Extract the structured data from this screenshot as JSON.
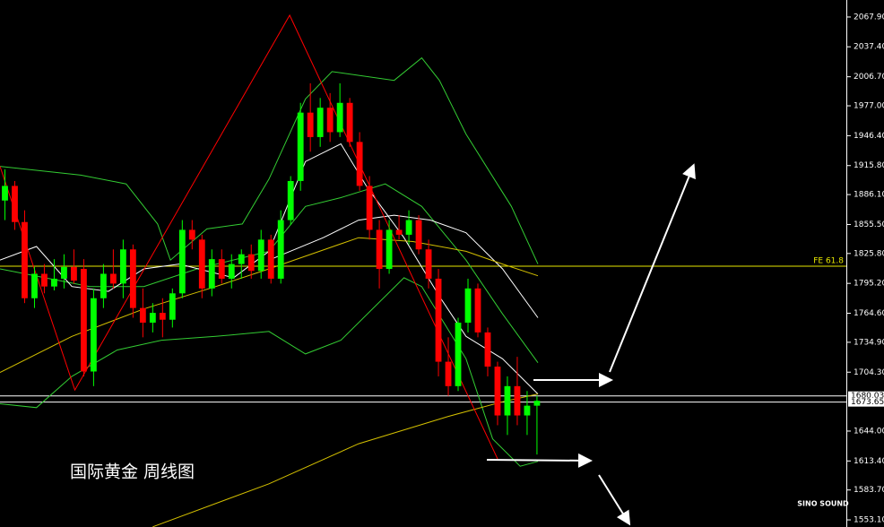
{
  "chart_data": {
    "type": "candlestick",
    "title": "国际黄金  周线图",
    "brand": "SINO SOUND",
    "up_color": "#00ff00",
    "down_color": "#ff0000",
    "xlim": [
      -0.5,
      85.4
    ],
    "ylim": [
      1545.8,
      2085.3
    ],
    "yticks": [
      {
        "value": 2067.9,
        "label": "2067.90"
      },
      {
        "value": 2037.4,
        "label": "2037.40"
      },
      {
        "value": 2006.7,
        "label": "2006.70"
      },
      {
        "value": 1977,
        "label": "1977.00"
      },
      {
        "value": 1946.4,
        "label": "1946.40"
      },
      {
        "value": 1915.8,
        "label": "1915.80"
      },
      {
        "value": 1886.1,
        "label": "1886.10"
      },
      {
        "value": 1855.5,
        "label": "1855.50"
      },
      {
        "value": 1825.8,
        "label": "1825.80"
      },
      {
        "value": 1795.2,
        "label": "1795.20"
      },
      {
        "value": 1764.6,
        "label": "1764.60"
      },
      {
        "value": 1734.9,
        "label": "1734.90"
      },
      {
        "value": 1704.3,
        "label": "1704.30"
      },
      {
        "value": 1644,
        "label": "1644.00"
      },
      {
        "value": 1613.4,
        "label": "1613.40"
      },
      {
        "value": 1583.7,
        "label": "1583.70"
      },
      {
        "value": 1553.1,
        "label": "1553.10"
      }
    ],
    "candles": {
      "open": [
        1880,
        1895,
        1858,
        1780,
        1805,
        1792,
        1800,
        1812,
        1810,
        1705,
        1780,
        1805,
        1795,
        1830,
        1770,
        1755,
        1765,
        1758,
        1785,
        1850,
        1840,
        1790,
        1820,
        1800,
        1815,
        1825,
        1808,
        1840,
        1800,
        1860,
        1900,
        1970,
        1945,
        1975,
        1950,
        1980,
        1940,
        1895,
        1850,
        1810,
        1850,
        1845,
        1860,
        1830,
        1800,
        1715,
        1690,
        1755,
        1790,
        1745,
        1710,
        1660,
        1690,
        1660,
        1670
      ],
      "high": [
        1912,
        1900,
        1870,
        1812,
        1815,
        1820,
        1825,
        1830,
        1820,
        1790,
        1815,
        1830,
        1840,
        1835,
        1790,
        1775,
        1780,
        1790,
        1860,
        1860,
        1845,
        1830,
        1830,
        1825,
        1830,
        1835,
        1850,
        1845,
        1870,
        1905,
        1980,
        2000,
        1985,
        1990,
        2000,
        1985,
        1950,
        1905,
        1860,
        1860,
        1865,
        1870,
        1865,
        1840,
        1810,
        1740,
        1760,
        1800,
        1795,
        1750,
        1715,
        1700,
        1720,
        1685,
        1680
      ],
      "low": [
        1860,
        1850,
        1775,
        1770,
        1785,
        1788,
        1790,
        1795,
        1700,
        1690,
        1770,
        1790,
        1780,
        1760,
        1740,
        1745,
        1740,
        1750,
        1780,
        1830,
        1780,
        1782,
        1795,
        1790,
        1800,
        1800,
        1800,
        1795,
        1795,
        1855,
        1890,
        1930,
        1935,
        1940,
        1945,
        1935,
        1890,
        1840,
        1790,
        1805,
        1840,
        1835,
        1825,
        1790,
        1700,
        1680,
        1685,
        1745,
        1740,
        1700,
        1650,
        1640,
        1650,
        1640,
        1620
      ],
      "close": [
        1895,
        1858,
        1780,
        1805,
        1792,
        1800,
        1812,
        1798,
        1705,
        1780,
        1805,
        1795,
        1830,
        1770,
        1755,
        1765,
        1758,
        1785,
        1850,
        1840,
        1790,
        1820,
        1800,
        1815,
        1825,
        1808,
        1840,
        1800,
        1860,
        1900,
        1970,
        1945,
        1975,
        1950,
        1980,
        1940,
        1895,
        1850,
        1810,
        1850,
        1845,
        1860,
        1830,
        1800,
        1715,
        1690,
        1755,
        1790,
        1745,
        1710,
        1660,
        1690,
        1660,
        1670,
        1675
      ]
    },
    "lines": [
      {
        "color": "#33cc33",
        "x": [
          -0.5,
          7.7,
          12.3,
          15.5,
          16.8,
          20.5,
          24.1,
          26.8,
          30.5,
          33.2,
          39.5,
          42.3,
          44.1,
          46.8,
          51.4,
          54.1
        ],
        "values": [
          1915,
          1906,
          1897,
          1856,
          1819,
          1851,
          1856,
          1902,
          1984,
          2012,
          2003,
          2026,
          2003,
          1948,
          1874,
          1815
        ]
      },
      {
        "color": "#33cc33",
        "x": [
          -0.5,
          8.6,
          14.1,
          19.5,
          26.8,
          30.5,
          34.1,
          38.6,
          42.3,
          46.8,
          50.5,
          54.1
        ],
        "values": [
          1810,
          1792,
          1792,
          1810,
          1828,
          1874,
          1883,
          1897,
          1874,
          1819,
          1764,
          1714
        ]
      },
      {
        "color": "#33cc33",
        "x": [
          -0.5,
          3.2,
          6.8,
          11.4,
          15.9,
          21.4,
          26.8,
          30.5,
          34.1,
          37.7,
          40.5,
          42.3,
          46.8,
          49.5,
          52.3,
          54.1
        ],
        "values": [
          1672,
          1668,
          1700,
          1727,
          1737,
          1741,
          1746,
          1723,
          1737,
          1773,
          1801,
          1792,
          1718,
          1636,
          1608,
          1613
        ]
      },
      {
        "color": "#ffffff",
        "x": [
          -0.5,
          3.2,
          6.8,
          10.5,
          14.1,
          17.7,
          23.2,
          26.8,
          30.5,
          34.1,
          36.8,
          40.5,
          44.1,
          46.8,
          50.5,
          54.1
        ],
        "values": [
          1819,
          1833,
          1792,
          1787,
          1810,
          1815,
          1801,
          1828,
          1920,
          1938,
          1893,
          1842,
          1782,
          1741,
          1718,
          1682
        ]
      },
      {
        "color": "#ffffff",
        "x": [
          26.8,
          32.3,
          35.9,
          39.5,
          43.2,
          46.8,
          50.5,
          54.1
        ],
        "values": [
          1819,
          1842,
          1860,
          1865,
          1860,
          1847,
          1810,
          1760
        ]
      },
      {
        "color": "#d4c000",
        "x": [
          -0.5,
          6.8,
          14.1,
          21.4,
          26.8,
          35.9,
          41.4,
          46.8,
          50.5,
          54.1
        ],
        "values": [
          1704,
          1741,
          1769,
          1792,
          1810,
          1842,
          1838,
          1828,
          1815,
          1803
        ]
      },
      {
        "color": "#d4c000",
        "x": [
          15,
          26.8,
          35.9,
          45,
          50.5,
          54.1
        ],
        "values": [
          1546,
          1590,
          1631,
          1659,
          1674,
          1682
        ]
      },
      {
        "color": "#ff0000",
        "x": [
          -0.5,
          7.1,
          28.9,
          50
        ],
        "values": [
          1915,
          1686,
          2069.7,
          1615.5
        ]
      }
    ],
    "hlines": [
      {
        "value": 1812.8,
        "label": "FE 61.8",
        "color": "#e6e600"
      },
      {
        "value": 1680.03,
        "color": "#ffffff"
      },
      {
        "value": 1673.65,
        "color": "#ffffff"
      }
    ]
  }
}
